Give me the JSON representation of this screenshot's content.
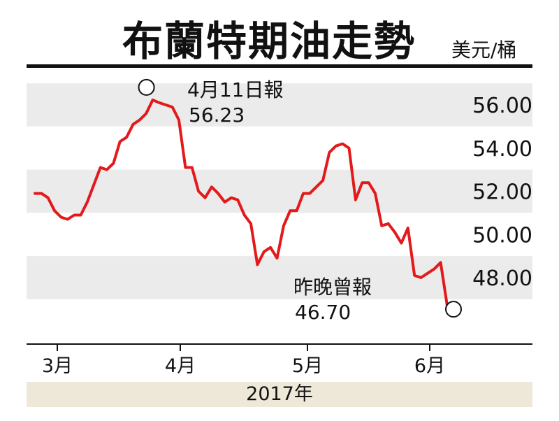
{
  "chart_data": {
    "type": "line",
    "title": "布蘭特期油走勢",
    "unit_label": "美元/桶",
    "year_label": "2017年",
    "x_labels": [
      "3月",
      "4月",
      "5月",
      "6月"
    ],
    "y_ticks": [
      "56.00",
      "54.00",
      "52.00",
      "50.00",
      "48.00"
    ],
    "ylim": [
      46.0,
      57.0
    ],
    "grid": "alternating horizontal bands",
    "series": [
      {
        "color": "#e3191c",
        "values": [
          51.9,
          51.9,
          51.7,
          51.1,
          50.8,
          50.7,
          50.9,
          50.9,
          51.5,
          52.3,
          53.1,
          53.0,
          53.3,
          54.3,
          54.5,
          55.1,
          55.3,
          55.6,
          56.23,
          56.1,
          56.0,
          55.9,
          55.3,
          53.1,
          53.1,
          52.0,
          51.7,
          52.2,
          51.9,
          51.5,
          51.7,
          51.6,
          50.9,
          50.5,
          48.6,
          49.2,
          49.4,
          48.9,
          50.4,
          51.1,
          51.1,
          51.9,
          51.9,
          52.2,
          52.5,
          53.8,
          54.1,
          54.2,
          54.0,
          51.6,
          52.4,
          52.4,
          51.9,
          50.4,
          50.5,
          50.1,
          49.6,
          50.3,
          48.1,
          48.0,
          48.2,
          48.4,
          48.7,
          46.7
        ]
      }
    ],
    "annotations": [
      {
        "line1": "4月11日報",
        "line2": "56.23"
      },
      {
        "line1": "昨晚曾報",
        "line2": "46.70"
      }
    ],
    "colors": {
      "line": "#e3191c",
      "band": "#ebebeb",
      "year_band": "#ede8d8"
    }
  }
}
